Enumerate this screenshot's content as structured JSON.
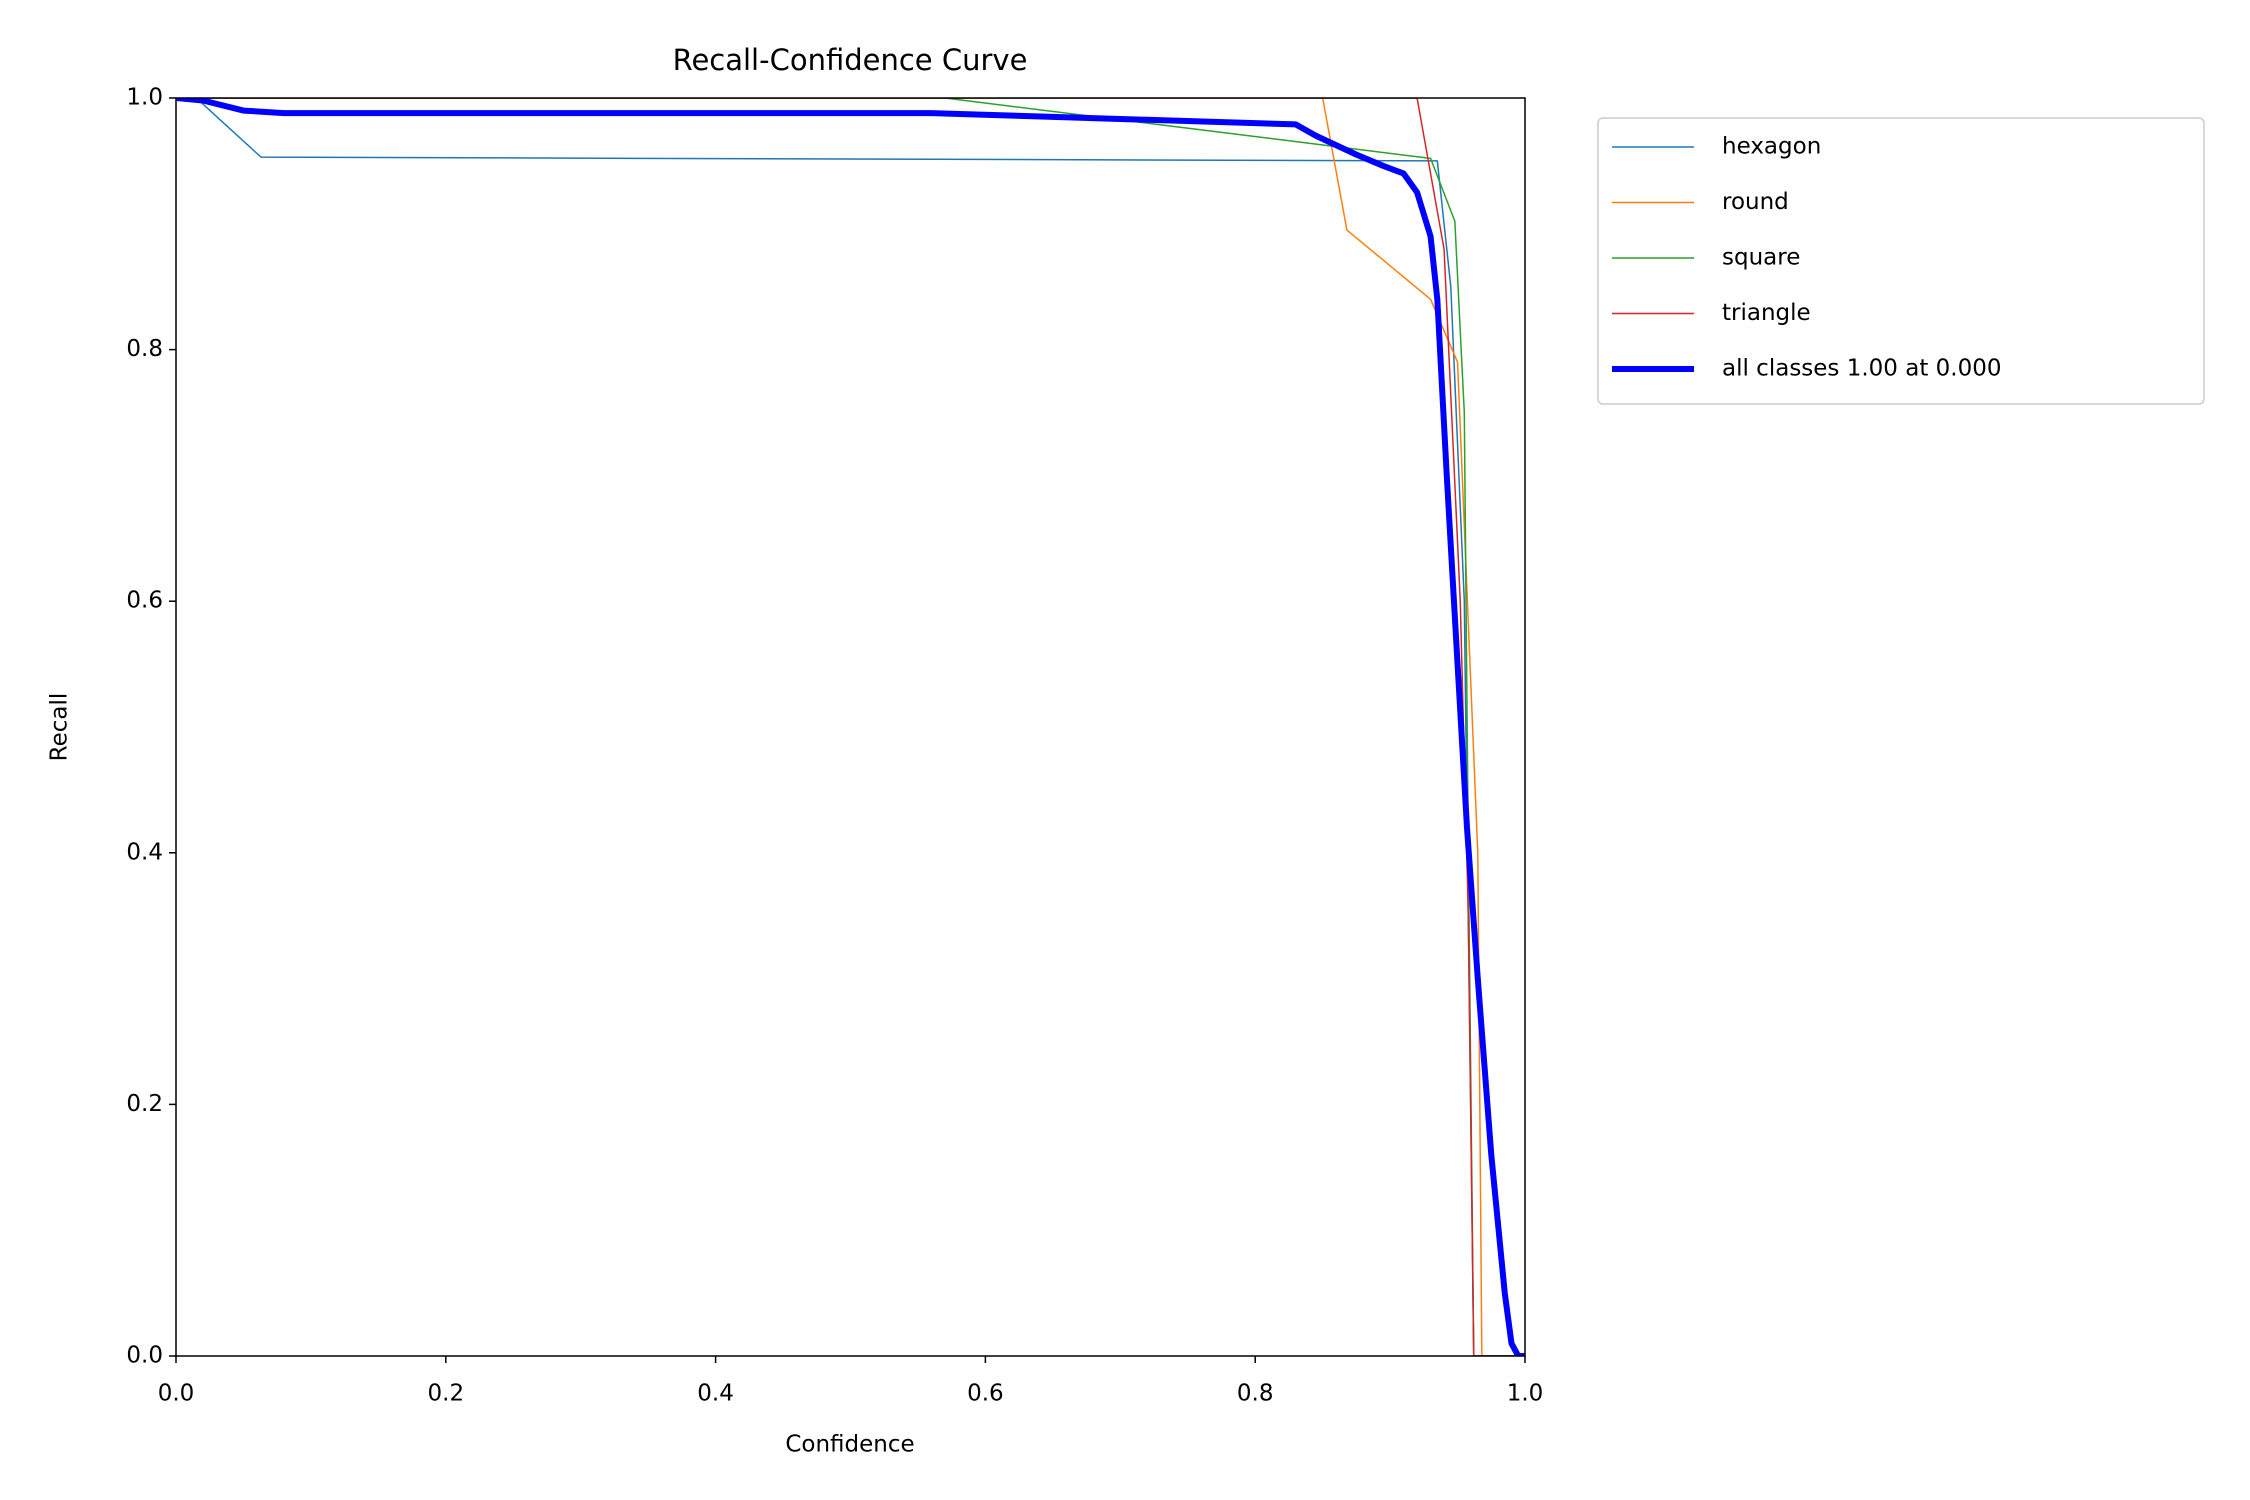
{
  "chart_data": {
    "type": "line",
    "title": "Recall-Confidence Curve",
    "x_label": "Confidence",
    "y_label": "Recall",
    "xlim": [
      0,
      1
    ],
    "ylim": [
      0,
      1
    ],
    "xticks": [
      {
        "value": 0,
        "label": "0.0"
      },
      0.2,
      0.4,
      0.6,
      0.8,
      {
        "value": 1,
        "label": "1.0"
      }
    ],
    "yticks": [
      {
        "value": 0,
        "label": "0.0"
      },
      0.2,
      0.4,
      0.6,
      0.8,
      {
        "value": 1,
        "label": "1.0"
      }
    ],
    "legend": "outside-upper-right",
    "series": [
      {
        "name": "hexagon",
        "color": "#1f77b4",
        "line_width": 1.5,
        "x": [
          0,
          0.015,
          0.063,
          0.935,
          0.945,
          0.955,
          0.962,
          1.0
        ],
        "values": [
          1,
          1,
          0.953,
          0.95,
          0.85,
          0.6,
          0,
          0
        ]
      },
      {
        "name": "round",
        "color": "#ff7f0e",
        "line_width": 1.5,
        "x": [
          0,
          0.85,
          0.868,
          0.93,
          0.95,
          0.965,
          0.968,
          1.0
        ],
        "values": [
          1,
          1,
          0.895,
          0.84,
          0.79,
          0.4,
          0,
          0
        ]
      },
      {
        "name": "square",
        "color": "#2ca02c",
        "line_width": 1.5,
        "x": [
          0,
          0.57,
          0.93,
          0.948,
          0.955,
          0.958,
          0.962,
          1.0
        ],
        "values": [
          1,
          1,
          0.952,
          0.902,
          0.75,
          0.4,
          0,
          0
        ]
      },
      {
        "name": "triangle",
        "color": "#d62728",
        "line_width": 1.5,
        "x": [
          0,
          0.92,
          0.94,
          0.952,
          0.958,
          0.962,
          1.0
        ],
        "values": [
          1,
          1,
          0.88,
          0.6,
          0.35,
          0,
          0
        ]
      },
      {
        "name": "all classes 1.00 at 0.000",
        "color": "#0000ff",
        "line_width": 6,
        "x": [
          0,
          0.02,
          0.05,
          0.08,
          0.56,
          0.65,
          0.83,
          0.845,
          0.875,
          0.895,
          0.91,
          0.92,
          0.93,
          0.935,
          0.942,
          0.95,
          0.957,
          0.965,
          0.975,
          0.985,
          0.99,
          0.995,
          1.0
        ],
        "values": [
          1,
          0.998,
          0.99,
          0.988,
          0.988,
          0.985,
          0.979,
          0.97,
          0.955,
          0.946,
          0.94,
          0.925,
          0.89,
          0.84,
          0.7,
          0.55,
          0.42,
          0.3,
          0.16,
          0.05,
          0.01,
          0,
          0
        ]
      }
    ]
  }
}
